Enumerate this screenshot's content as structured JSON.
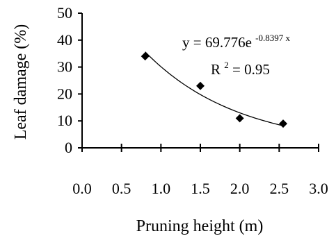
{
  "chart_data": {
    "type": "scatter",
    "title": "",
    "xlabel": "Pruning height (m)",
    "ylabel": "Leaf damage (%)",
    "xlim": [
      0.0,
      3.0
    ],
    "ylim": [
      0,
      50
    ],
    "x_ticks": [
      0.0,
      0.5,
      1.0,
      1.5,
      2.0,
      2.5,
      3.0
    ],
    "x_tick_labels": [
      "0.0",
      "0.5",
      "1.0",
      "1.5",
      "2.0",
      "2.5",
      "3.0"
    ],
    "y_ticks": [
      0,
      10,
      20,
      30,
      40,
      50
    ],
    "y_tick_labels": [
      "0",
      "10",
      "20",
      "30",
      "40",
      "50"
    ],
    "grid": false,
    "marker": "diamond",
    "series": [
      {
        "x": [
          0.8,
          1.5,
          2.0,
          2.55
        ],
        "y": [
          34,
          23,
          11,
          9
        ]
      }
    ],
    "trendline": {
      "type": "exponential",
      "a": 69.776,
      "b": -0.8397,
      "x_range": [
        0.8,
        2.55
      ],
      "r_squared": 0.95
    },
    "annotations": {
      "equation_main": "y = 69.776e",
      "equation_exponent": "-0.8397 x",
      "r2_base": "R",
      "r2_sup": "2",
      "r2_rest": " = 0.95"
    }
  }
}
